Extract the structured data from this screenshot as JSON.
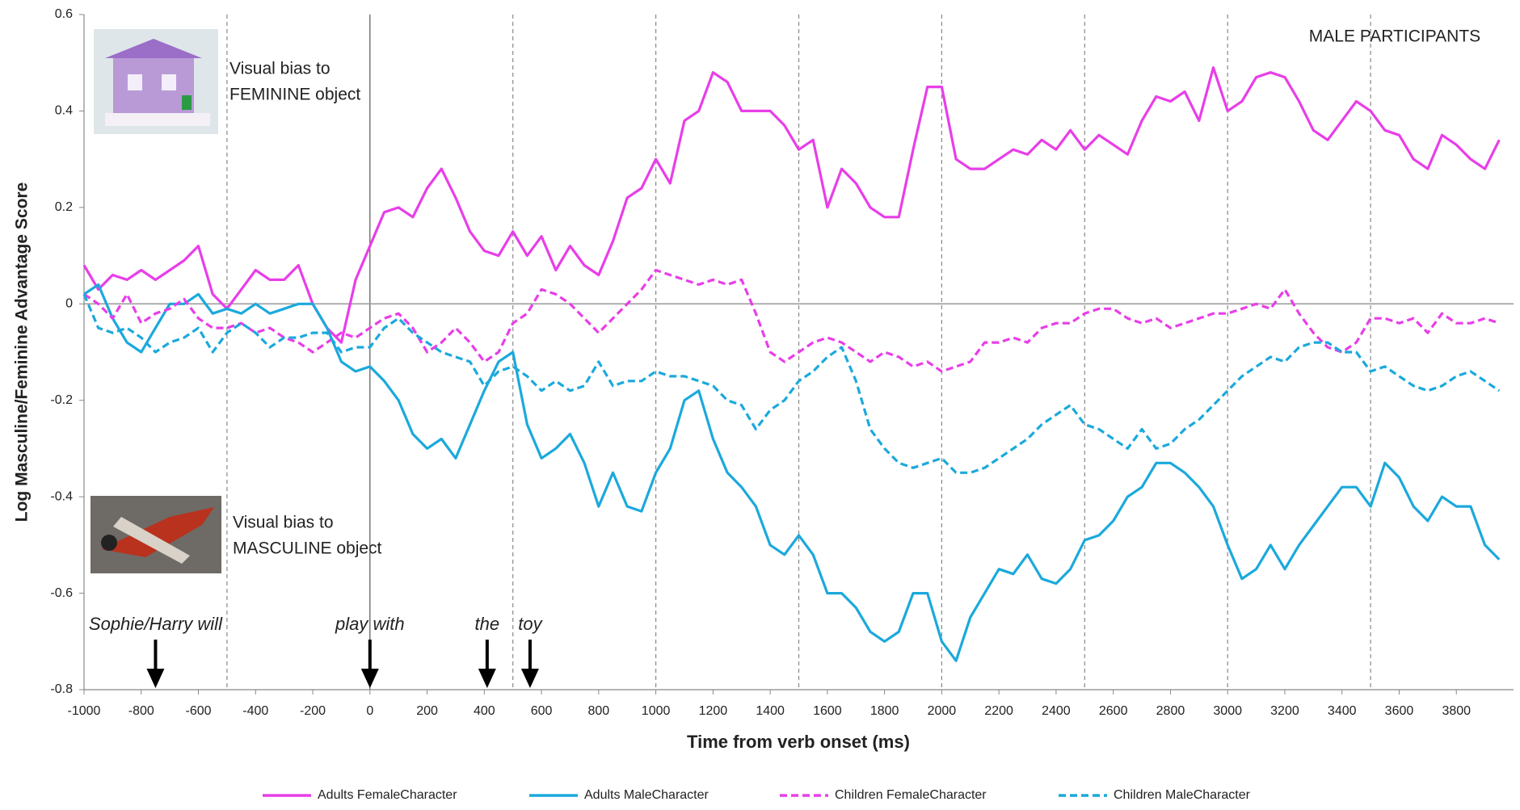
{
  "chart_data": {
    "type": "line",
    "x_label": "Time from verb onset (ms)",
    "y_label": "Log Masculine/Feminine Advantage Score",
    "panel_label": "MALE PARTICIPANTS",
    "feminine_note": [
      "Visual bias to",
      "FEMININE object"
    ],
    "masculine_note": [
      "Visual bias to",
      "MASCULINE object"
    ],
    "xlim": [
      -1000,
      4000
    ],
    "ylim": [
      -0.8,
      0.6
    ],
    "xticks": [
      -1000,
      -800,
      -600,
      -400,
      -200,
      0,
      200,
      400,
      600,
      800,
      1000,
      1200,
      1400,
      1600,
      1800,
      2000,
      2200,
      2400,
      2600,
      2800,
      3000,
      3200,
      3400,
      3600,
      3800
    ],
    "yticks": [
      0.6,
      0.4,
      0.2,
      0,
      -0.2,
      -0.4,
      -0.6,
      -0.8
    ],
    "reference_lines": [
      {
        "x": -500,
        "style": "dashed"
      },
      {
        "x": 0,
        "style": "solid"
      },
      {
        "x": 500,
        "style": "dashed"
      },
      {
        "x": 1000,
        "style": "dashed"
      },
      {
        "x": 1500,
        "style": "dashed"
      },
      {
        "x": 2000,
        "style": "dashed"
      },
      {
        "x": 2500,
        "style": "dashed"
      },
      {
        "x": 3000,
        "style": "dashed"
      },
      {
        "x": 3500,
        "style": "dashed"
      }
    ],
    "word_onsets": [
      {
        "label": "Sophie/Harry will",
        "x": -750
      },
      {
        "label": "play with",
        "x": 0
      },
      {
        "label": "the",
        "x": 410
      },
      {
        "label": "toy",
        "x": 560
      }
    ],
    "x": [
      -1000,
      -950,
      -900,
      -850,
      -800,
      -750,
      -700,
      -650,
      -600,
      -550,
      -500,
      -450,
      -400,
      -350,
      -300,
      -250,
      -200,
      -150,
      -100,
      -50,
      0,
      50,
      100,
      150,
      200,
      250,
      300,
      350,
      400,
      450,
      500,
      550,
      600,
      650,
      700,
      750,
      800,
      850,
      900,
      950,
      1000,
      1050,
      1100,
      1150,
      1200,
      1250,
      1300,
      1350,
      1400,
      1450,
      1500,
      1550,
      1600,
      1650,
      1700,
      1750,
      1800,
      1850,
      1900,
      1950,
      2000,
      2050,
      2100,
      2150,
      2200,
      2250,
      2300,
      2350,
      2400,
      2450,
      2500,
      2550,
      2600,
      2650,
      2700,
      2750,
      2800,
      2850,
      2900,
      2950,
      3000,
      3050,
      3100,
      3150,
      3200,
      3250,
      3300,
      3350,
      3400,
      3450,
      3500,
      3550,
      3600,
      3650,
      3700,
      3750,
      3800,
      3850,
      3900,
      3950
    ],
    "series": [
      {
        "name": "Adults FemaleCharacter",
        "color": "#e83ee8",
        "dashed": false,
        "values": [
          0.08,
          0.03,
          0.06,
          0.05,
          0.07,
          0.05,
          0.07,
          0.09,
          0.12,
          0.02,
          -0.01,
          0.03,
          0.07,
          0.05,
          0.05,
          0.08,
          0.0,
          -0.05,
          -0.08,
          0.05,
          0.12,
          0.19,
          0.2,
          0.18,
          0.24,
          0.28,
          0.22,
          0.15,
          0.11,
          0.1,
          0.15,
          0.1,
          0.14,
          0.07,
          0.12,
          0.08,
          0.06,
          0.13,
          0.22,
          0.24,
          0.3,
          0.25,
          0.38,
          0.4,
          0.48,
          0.46,
          0.4,
          0.4,
          0.4,
          0.37,
          0.32,
          0.34,
          0.2,
          0.28,
          0.25,
          0.2,
          0.18,
          0.18,
          0.32,
          0.45,
          0.45,
          0.3,
          0.28,
          0.28,
          0.3,
          0.32,
          0.31,
          0.34,
          0.32,
          0.36,
          0.32,
          0.35,
          0.33,
          0.31,
          0.38,
          0.43,
          0.42,
          0.44,
          0.38,
          0.49,
          0.4,
          0.42,
          0.47,
          0.48,
          0.47,
          0.42,
          0.36,
          0.34,
          0.38,
          0.42,
          0.4,
          0.36,
          0.35,
          0.3,
          0.28,
          0.35,
          0.33,
          0.3,
          0.28,
          0.34
        ]
      },
      {
        "name": "Adults MaleCharacter",
        "color": "#1ba9dc",
        "dashed": false,
        "values": [
          0.02,
          0.04,
          -0.03,
          -0.08,
          -0.1,
          -0.05,
          0.0,
          0.0,
          0.02,
          -0.02,
          -0.01,
          -0.02,
          0.0,
          -0.02,
          -0.01,
          0.0,
          0.0,
          -0.05,
          -0.12,
          -0.14,
          -0.13,
          -0.16,
          -0.2,
          -0.27,
          -0.3,
          -0.28,
          -0.32,
          -0.25,
          -0.18,
          -0.12,
          -0.1,
          -0.25,
          -0.32,
          -0.3,
          -0.27,
          -0.33,
          -0.42,
          -0.35,
          -0.42,
          -0.43,
          -0.35,
          -0.3,
          -0.2,
          -0.18,
          -0.28,
          -0.35,
          -0.38,
          -0.42,
          -0.5,
          -0.52,
          -0.48,
          -0.52,
          -0.6,
          -0.6,
          -0.63,
          -0.68,
          -0.7,
          -0.68,
          -0.6,
          -0.6,
          -0.7,
          -0.74,
          -0.65,
          -0.6,
          -0.55,
          -0.56,
          -0.52,
          -0.57,
          -0.58,
          -0.55,
          -0.49,
          -0.48,
          -0.45,
          -0.4,
          -0.38,
          -0.33,
          -0.33,
          -0.35,
          -0.38,
          -0.42,
          -0.5,
          -0.57,
          -0.55,
          -0.5,
          -0.55,
          -0.5,
          -0.46,
          -0.42,
          -0.38,
          -0.38,
          -0.42,
          -0.33,
          -0.36,
          -0.42,
          -0.45,
          -0.4,
          -0.42,
          -0.42,
          -0.5,
          -0.53
        ]
      },
      {
        "name": "Children FemaleCharacter",
        "color": "#e83ee8",
        "dashed": true,
        "values": [
          0.02,
          0.0,
          -0.03,
          0.02,
          -0.04,
          -0.02,
          -0.01,
          0.01,
          -0.03,
          -0.05,
          -0.05,
          -0.04,
          -0.06,
          -0.05,
          -0.07,
          -0.08,
          -0.1,
          -0.08,
          -0.06,
          -0.07,
          -0.05,
          -0.03,
          -0.02,
          -0.05,
          -0.1,
          -0.08,
          -0.05,
          -0.08,
          -0.12,
          -0.1,
          -0.04,
          -0.02,
          0.03,
          0.02,
          0.0,
          -0.03,
          -0.06,
          -0.03,
          0.0,
          0.03,
          0.07,
          0.06,
          0.05,
          0.04,
          0.05,
          0.04,
          0.05,
          -0.02,
          -0.1,
          -0.12,
          -0.1,
          -0.08,
          -0.07,
          -0.08,
          -0.1,
          -0.12,
          -0.1,
          -0.11,
          -0.13,
          -0.12,
          -0.14,
          -0.13,
          -0.12,
          -0.08,
          -0.08,
          -0.07,
          -0.08,
          -0.05,
          -0.04,
          -0.04,
          -0.02,
          -0.01,
          -0.01,
          -0.03,
          -0.04,
          -0.03,
          -0.05,
          -0.04,
          -0.03,
          -0.02,
          -0.02,
          -0.01,
          0.0,
          -0.01,
          0.03,
          -0.02,
          -0.06,
          -0.09,
          -0.1,
          -0.08,
          -0.03,
          -0.03,
          -0.04,
          -0.03,
          -0.06,
          -0.02,
          -0.04,
          -0.04,
          -0.03,
          -0.04
        ]
      },
      {
        "name": "Children MaleCharacter",
        "color": "#1ba9dc",
        "dashed": true,
        "values": [
          0.02,
          -0.05,
          -0.06,
          -0.05,
          -0.07,
          -0.1,
          -0.08,
          -0.07,
          -0.05,
          -0.1,
          -0.06,
          -0.04,
          -0.06,
          -0.09,
          -0.07,
          -0.07,
          -0.06,
          -0.06,
          -0.1,
          -0.09,
          -0.09,
          -0.05,
          -0.03,
          -0.06,
          -0.08,
          -0.1,
          -0.11,
          -0.12,
          -0.17,
          -0.14,
          -0.13,
          -0.15,
          -0.18,
          -0.16,
          -0.18,
          -0.17,
          -0.12,
          -0.17,
          -0.16,
          -0.16,
          -0.14,
          -0.15,
          -0.15,
          -0.16,
          -0.17,
          -0.2,
          -0.21,
          -0.26,
          -0.22,
          -0.2,
          -0.16,
          -0.14,
          -0.11,
          -0.09,
          -0.16,
          -0.26,
          -0.3,
          -0.33,
          -0.34,
          -0.33,
          -0.32,
          -0.35,
          -0.35,
          -0.34,
          -0.32,
          -0.3,
          -0.28,
          -0.25,
          -0.23,
          -0.21,
          -0.25,
          -0.26,
          -0.28,
          -0.3,
          -0.26,
          -0.3,
          -0.29,
          -0.26,
          -0.24,
          -0.21,
          -0.18,
          -0.15,
          -0.13,
          -0.11,
          -0.12,
          -0.09,
          -0.08,
          -0.08,
          -0.1,
          -0.1,
          -0.14,
          -0.13,
          -0.15,
          -0.17,
          -0.18,
          -0.17,
          -0.15,
          -0.14,
          -0.16,
          -0.18
        ]
      }
    ]
  }
}
